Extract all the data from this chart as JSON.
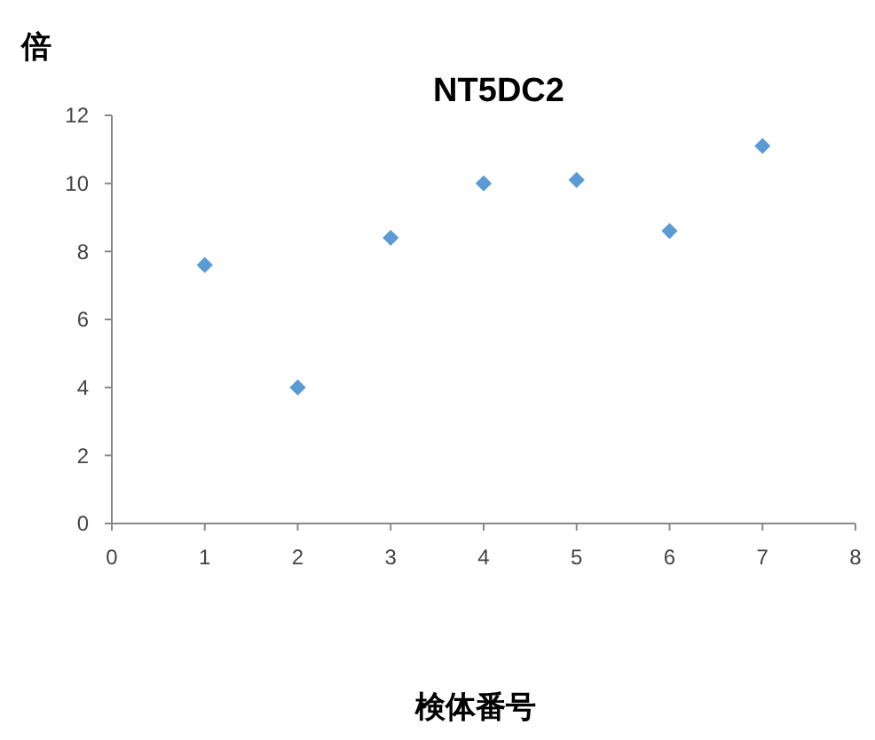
{
  "chart_data": {
    "type": "scatter",
    "title": "NT5DC2",
    "xlabel": "検体番号",
    "ylabel": "倍",
    "x": [
      1,
      2,
      3,
      4,
      5,
      6,
      7
    ],
    "series": [
      {
        "color": "#5b9bd5",
        "values": [
          7.6,
          4.0,
          8.4,
          10.0,
          10.1,
          8.6,
          11.1
        ]
      }
    ],
    "xlim": [
      0,
      8
    ],
    "xticks": [
      0,
      1,
      2,
      3,
      4,
      5,
      6,
      7,
      8
    ],
    "ylim": [
      0,
      12
    ],
    "yticks": [
      0,
      2,
      4,
      6,
      8,
      10,
      12
    ],
    "grid": false,
    "marker": "diamond"
  }
}
